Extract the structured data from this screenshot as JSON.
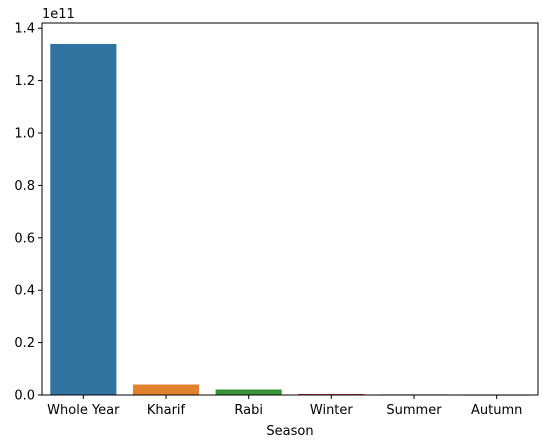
{
  "chart_data": {
    "type": "bar",
    "categories": [
      "Whole Year",
      "Kharif",
      "Rabi",
      "Winter",
      "Summer",
      "Autumn"
    ],
    "values": [
      134000000000,
      4000000000,
      2100000000,
      400000000,
      250000000,
      60000000
    ],
    "colors": [
      "#3274a1",
      "#e1812c",
      "#3a923a",
      "#c03d3e",
      "#9372b2",
      "#845b53"
    ],
    "xlabel": "Season",
    "ylabel": "",
    "y_offset_label": "1e11",
    "ylim": [
      0,
      142000000000
    ],
    "yticks": [
      0,
      20000000000,
      40000000000,
      60000000000,
      80000000000,
      100000000000,
      120000000000,
      140000000000
    ],
    "ytick_labels": [
      "0.0",
      "0.2",
      "0.4",
      "0.6",
      "0.8",
      "1.0",
      "1.2",
      "1.4"
    ],
    "grid": false,
    "legend": "none"
  }
}
